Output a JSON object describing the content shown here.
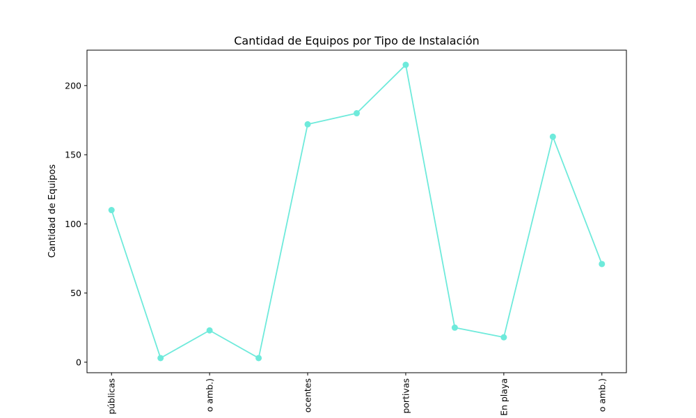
{
  "chart_data": {
    "type": "line",
    "title": "Cantidad de Equipos por Tipo de Instalación",
    "xlabel": "",
    "ylabel": "Cantidad de Equipos",
    "categories": [
      "",
      "",
      "",
      "",
      "",
      "",
      "",
      "",
      "",
      "",
      ""
    ],
    "x_tick_labels": [
      "públicas",
      "o amb.)",
      "ocentes",
      "portivas",
      "En playa",
      "o amb.)"
    ],
    "x_tick_indices": [
      0,
      2,
      4,
      6,
      8,
      10
    ],
    "series": [
      {
        "values": [
          110,
          3,
          23,
          3,
          172,
          180,
          215,
          25,
          18,
          163,
          71
        ],
        "color": "#6eeadb"
      }
    ],
    "yticks": [
      0,
      50,
      100,
      150,
      200
    ],
    "ylim": [
      -7.6,
      225.6
    ],
    "xlim": [
      -0.5,
      10.5
    ],
    "grid": false,
    "legend": "none",
    "marker": "circle"
  }
}
